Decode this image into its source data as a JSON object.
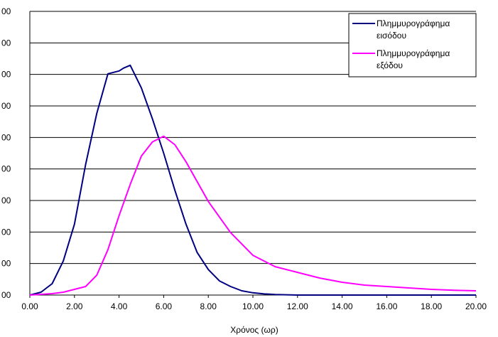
{
  "chart_data": {
    "type": "line",
    "xlabel": "Χρόνος (ωρ)",
    "x_ticks": [
      "0.00",
      "2.00",
      "4.00",
      "6.00",
      "8.00",
      "10.00",
      "12.00",
      "14.00",
      "16.00",
      "18.00",
      "20.00"
    ],
    "y_tick_labels": [
      "00",
      "00",
      "00",
      "00",
      "00",
      "00",
      "00",
      "00",
      "00",
      "00"
    ],
    "xlim": [
      0,
      20
    ],
    "ylim": [
      0,
      1
    ],
    "grid": "horizontal",
    "legend_position": "top-right",
    "series": [
      {
        "name": "Πλημμυρογράφημα εισόδου",
        "color": "#000080",
        "x": [
          0,
          0.5,
          1.0,
          1.5,
          2.0,
          2.5,
          3.0,
          3.5,
          4.0,
          4.2,
          4.5,
          5.0,
          5.5,
          6.0,
          6.5,
          7.0,
          7.5,
          8.0,
          8.5,
          9.0,
          9.5,
          10.0,
          10.5,
          11.0,
          11.5,
          12.0,
          14.0,
          16.0,
          18.0,
          20.0
        ],
        "values": [
          0,
          0.01,
          0.04,
          0.12,
          0.25,
          0.46,
          0.64,
          0.78,
          0.79,
          0.8,
          0.81,
          0.73,
          0.62,
          0.5,
          0.37,
          0.25,
          0.15,
          0.09,
          0.05,
          0.03,
          0.015,
          0.008,
          0.004,
          0.002,
          0.001,
          0,
          0,
          0,
          0,
          0
        ]
      },
      {
        "name": "Πλημμυρογράφημα εξόδου",
        "color": "#ff00ff",
        "x": [
          0,
          1.0,
          1.5,
          2.0,
          2.5,
          3.0,
          3.5,
          4.0,
          4.5,
          5.0,
          5.5,
          6.0,
          6.5,
          7.0,
          7.5,
          8.0,
          9.0,
          10.0,
          11.0,
          12.0,
          13.0,
          14.0,
          15.0,
          16.0,
          17.0,
          18.0,
          19.0,
          20.0
        ],
        "values": [
          0,
          0.005,
          0.01,
          0.02,
          0.03,
          0.07,
          0.16,
          0.28,
          0.39,
          0.49,
          0.54,
          0.56,
          0.53,
          0.47,
          0.4,
          0.33,
          0.22,
          0.14,
          0.1,
          0.08,
          0.06,
          0.045,
          0.035,
          0.03,
          0.025,
          0.02,
          0.017,
          0.015
        ]
      }
    ]
  }
}
